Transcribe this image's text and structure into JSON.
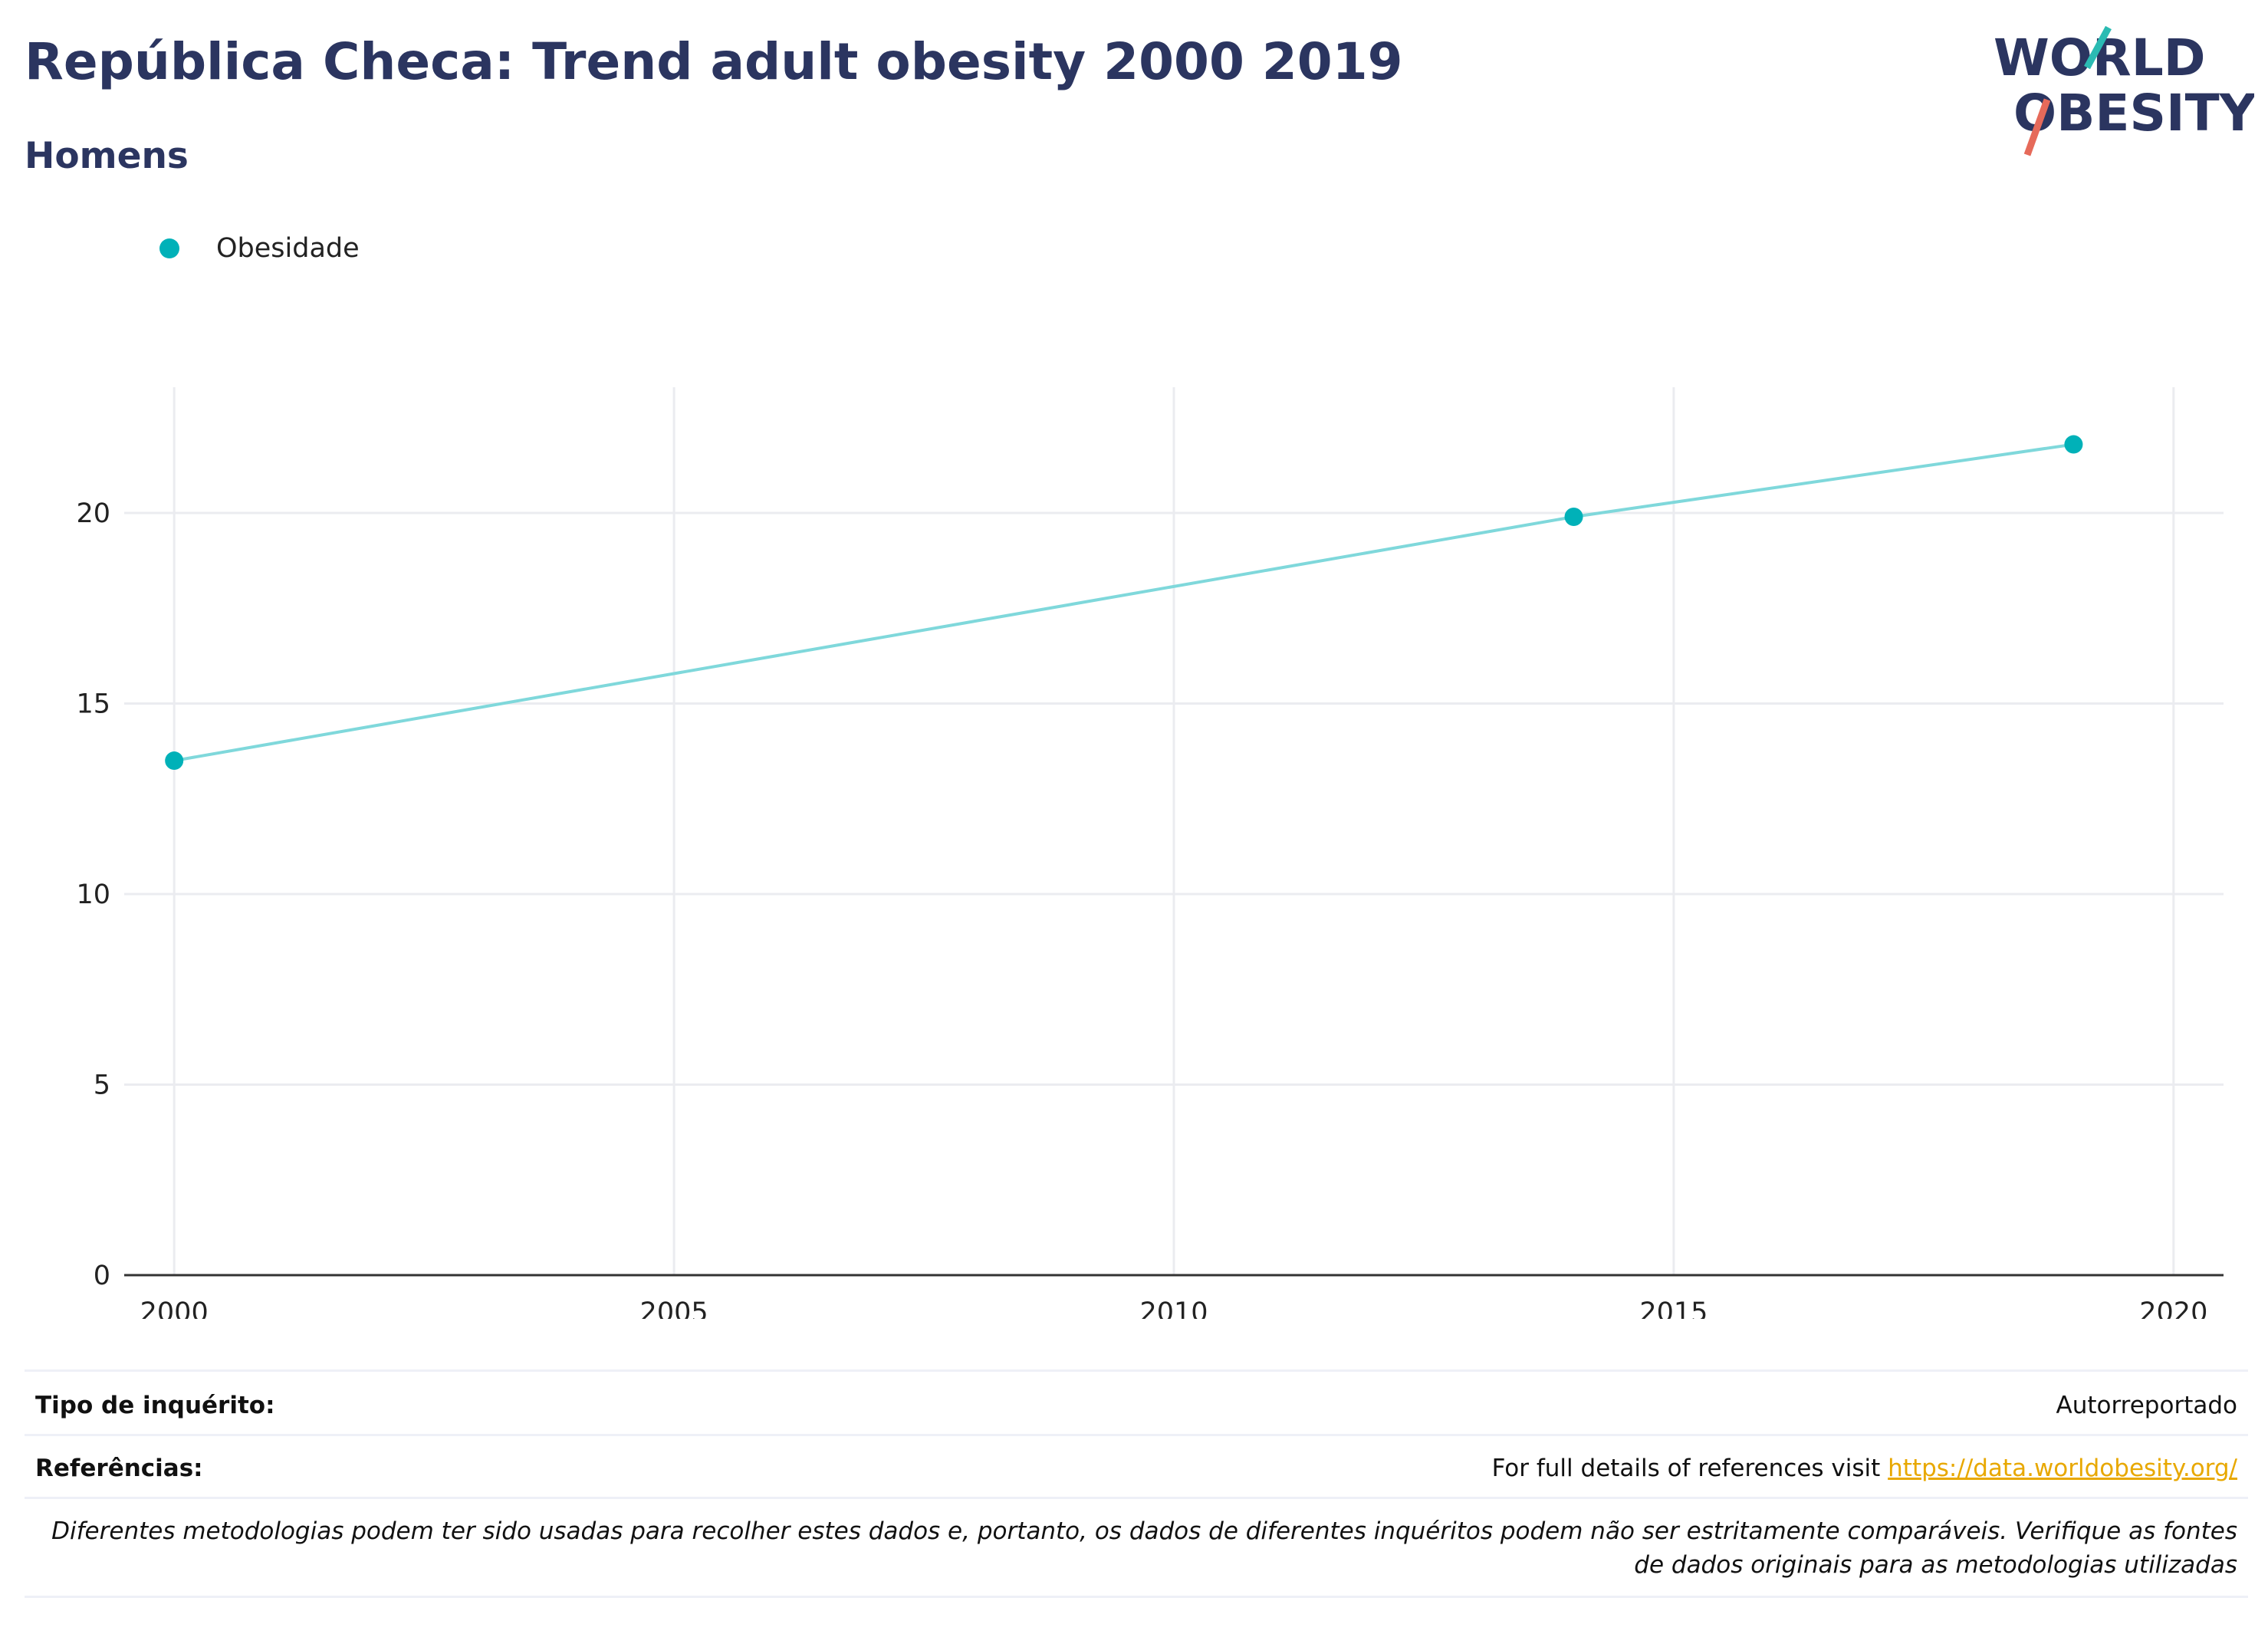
{
  "header": {
    "title": "República Checa: Trend adult obesity 2000 2019",
    "subtitle": "Homens"
  },
  "logo": {
    "line1": "WORLD",
    "line2": "OBESITY",
    "accent_teal": "#2bbbb3",
    "accent_coral": "#e66a5a"
  },
  "legend": {
    "label": "Obesidade",
    "color": "#00b1b8"
  },
  "chart_data": {
    "type": "line",
    "title": "República Checa: Trend adult obesity 2000 2019",
    "subtitle": "Homens",
    "xlabel": "",
    "ylabel": "",
    "xlim": [
      1999.5,
      2020.5
    ],
    "ylim": [
      0,
      23.3
    ],
    "x_ticks": [
      2000,
      2005,
      2010,
      2015,
      2020
    ],
    "y_ticks": [
      0,
      5,
      10,
      15,
      20
    ],
    "grid": true,
    "legend_position": "top-left",
    "line_color": "#7fd8db",
    "marker_color": "#00b1b8",
    "series": [
      {
        "name": "Obesidade",
        "x": [
          2000,
          2014,
          2019
        ],
        "y": [
          13.5,
          19.9,
          21.8
        ]
      }
    ]
  },
  "footer": {
    "survey_label": "Tipo de inquérito:",
    "survey_value": "Autorreportado",
    "refs_label": "Referências:",
    "refs_text": "For full details of references visit ",
    "refs_link": "https://data.worldobesity.org/",
    "note": "Diferentes metodologias podem ter sido usadas para recolher estes dados e, portanto, os dados de diferentes inquéritos podem não ser estritamente comparáveis. Verifique as fontes de dados originais para as metodologias utilizadas"
  }
}
